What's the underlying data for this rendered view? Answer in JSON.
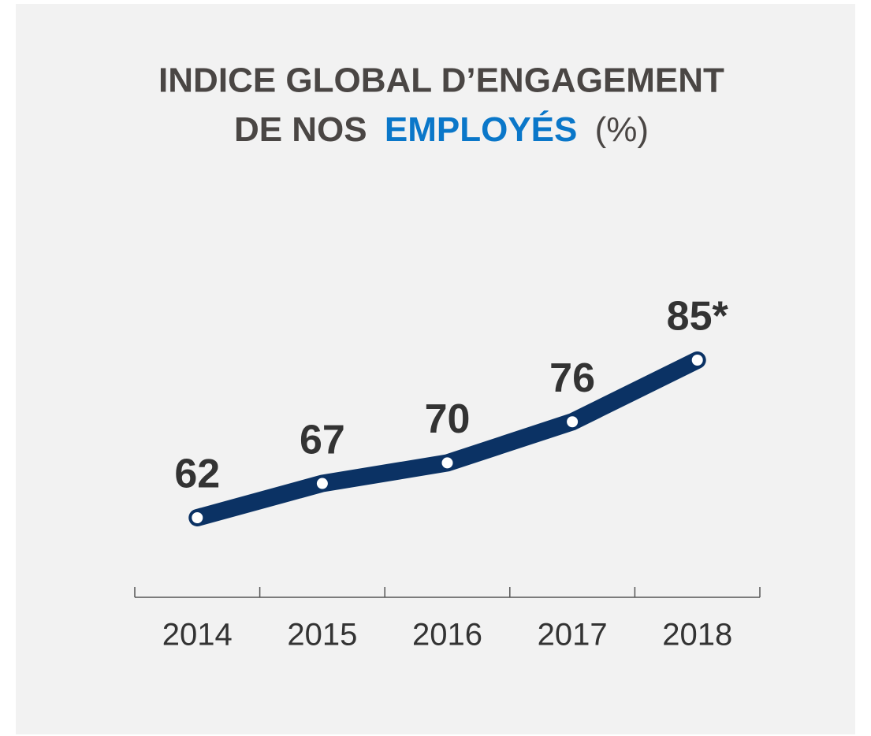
{
  "chart_data": {
    "type": "line",
    "title": {
      "line1": "INDICE GLOBAL D’ENGAGEMENT",
      "line2": [
        "DE NOS",
        "EMPLOYÉS",
        "(%)"
      ]
    },
    "title_color": "#4a4644",
    "highlight_color": "#0a77c9",
    "categories": [
      "2014",
      "2015",
      "2016",
      "2017",
      "2018"
    ],
    "values": [
      62,
      67,
      70,
      76,
      85
    ],
    "value_labels": [
      "62",
      "67",
      "70",
      "76",
      "85*"
    ],
    "color": "#0b3264"
  }
}
